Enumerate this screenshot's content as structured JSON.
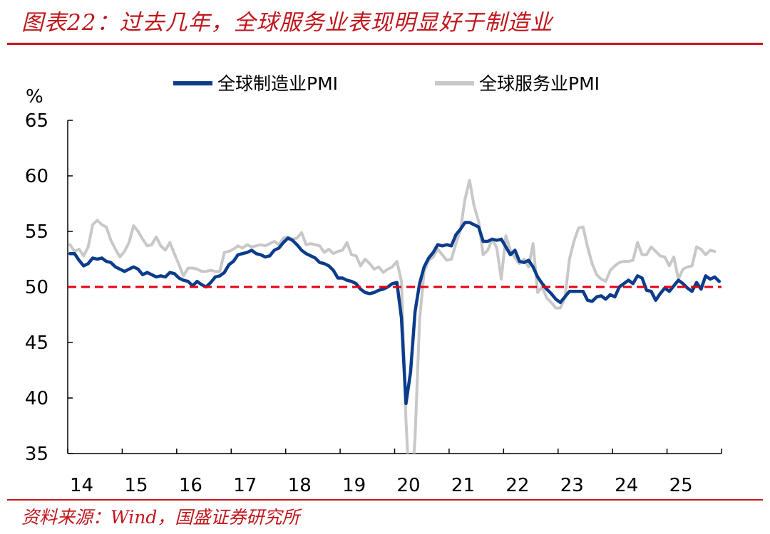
{
  "figure": {
    "title": "图表22：过去几年，全球服务业表现明显好于制造业",
    "source": "资料来源：Wind，国盛证券研究所"
  },
  "chart_data": {
    "type": "line",
    "ylabel": "%",
    "ylim": [
      35,
      65
    ],
    "yticks": [
      35,
      40,
      45,
      50,
      55,
      60,
      65
    ],
    "xticks": [
      "14",
      "15",
      "16",
      "17",
      "18",
      "19",
      "20",
      "21",
      "22",
      "23",
      "24",
      "25"
    ],
    "x_start": "2014-01",
    "legend_position": "top",
    "reference_line": {
      "value": 50,
      "color": "#e60012",
      "style": "dashed"
    },
    "series": [
      {
        "name": "全球制造业PMI",
        "color": "#0b3c8c",
        "values": [
          53.0,
          53.0,
          52.4,
          51.9,
          52.1,
          52.6,
          52.5,
          52.6,
          52.3,
          52.2,
          51.8,
          51.6,
          51.4,
          51.6,
          51.8,
          51.6,
          51.1,
          51.3,
          51.1,
          50.9,
          51.0,
          50.9,
          51.3,
          51.2,
          50.8,
          50.6,
          50.5,
          50.1,
          50.5,
          50.2,
          50.0,
          50.4,
          50.9,
          51.0,
          51.3,
          52.0,
          52.3,
          52.9,
          53.0,
          53.1,
          53.3,
          53.0,
          52.9,
          52.7,
          52.8,
          53.3,
          53.5,
          54.0,
          54.4,
          54.2,
          53.8,
          53.3,
          53.0,
          52.8,
          52.6,
          52.2,
          52.1,
          51.9,
          51.5,
          50.8,
          50.8,
          50.6,
          50.5,
          50.3,
          49.8,
          49.5,
          49.4,
          49.5,
          49.7,
          49.8,
          50.0,
          50.3,
          50.4,
          47.2,
          39.5,
          42.3,
          47.8,
          50.3,
          51.8,
          52.6,
          53.1,
          53.8,
          53.7,
          53.8,
          53.7,
          54.7,
          55.2,
          55.8,
          55.8,
          55.6,
          55.4,
          54.1,
          54.1,
          54.3,
          54.2,
          54.3,
          53.6,
          52.9,
          53.3,
          52.3,
          52.2,
          52.4,
          51.8,
          50.9,
          50.3,
          49.8,
          49.4,
          48.9,
          48.6,
          49.1,
          49.6,
          49.6,
          49.6,
          49.6,
          48.8,
          48.7,
          49.1,
          49.2,
          48.9,
          49.3,
          49.1,
          50.0,
          50.3,
          50.6,
          50.3,
          51.0,
          50.8,
          49.7,
          49.6,
          48.8,
          49.4,
          49.9,
          49.6,
          50.1,
          50.6,
          50.3,
          49.9,
          49.6,
          50.4,
          49.8,
          51.0,
          50.7,
          50.9,
          50.5
        ]
      },
      {
        "name": "全球服务业PMI",
        "color": "#c8c8c8",
        "values": [
          53.8,
          53.2,
          53.4,
          52.8,
          53.6,
          55.6,
          56.0,
          55.6,
          55.4,
          54.2,
          53.4,
          52.7,
          53.2,
          54.0,
          55.5,
          55.0,
          54.3,
          53.7,
          53.8,
          54.5,
          53.7,
          53.3,
          54.0,
          53.0,
          52.0,
          51.0,
          51.7,
          51.7,
          51.6,
          51.4,
          51.4,
          51.5,
          51.4,
          51.4,
          53.1,
          53.2,
          53.4,
          53.7,
          53.5,
          53.8,
          53.6,
          53.7,
          53.8,
          53.7,
          53.9,
          54.1,
          53.8,
          54.4,
          54.5,
          54.3,
          54.4,
          54.9,
          53.8,
          53.9,
          53.8,
          53.7,
          53.1,
          53.4,
          53.0,
          53.2,
          53.3,
          54.0,
          52.9,
          52.8,
          51.9,
          52.5,
          52.1,
          51.6,
          51.8,
          51.3,
          51.6,
          51.8,
          52.3,
          50.5,
          38.0,
          30.0,
          36.5,
          47.0,
          51.4,
          52.4,
          52.7,
          53.4,
          52.9,
          52.4,
          52.5,
          53.9,
          55.1,
          57.9,
          59.6,
          57.3,
          55.9,
          52.9,
          53.3,
          54.3,
          53.5,
          50.7,
          54.6,
          53.3,
          52.6,
          52.1,
          52.5,
          51.8,
          53.9,
          49.5,
          50.0,
          49.0,
          48.6,
          48.1,
          48.1,
          49.0,
          52.5,
          54.1,
          55.3,
          55.4,
          53.6,
          52.1,
          51.1,
          50.7,
          50.5,
          51.5,
          51.9,
          52.2,
          52.3,
          52.3,
          52.4,
          54.0,
          52.9,
          52.9,
          53.6,
          53.2,
          52.8,
          52.7,
          51.9,
          52.7,
          50.7,
          51.6,
          51.8,
          51.9,
          53.6,
          53.4,
          52.9,
          53.3,
          53.2
        ]
      }
    ]
  }
}
